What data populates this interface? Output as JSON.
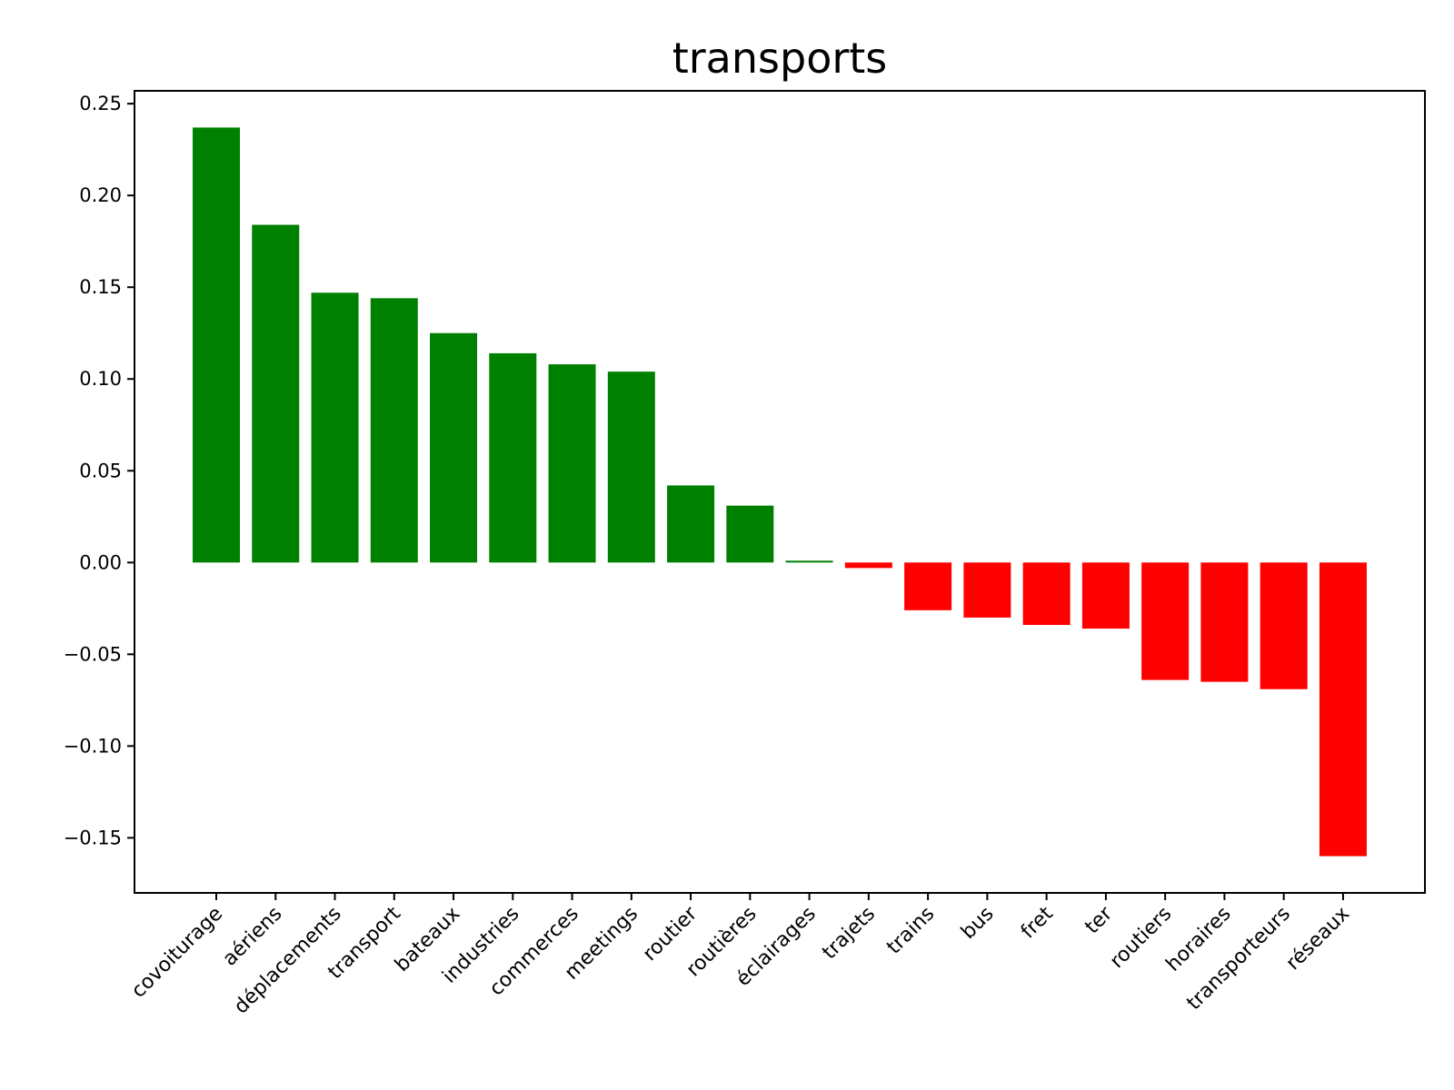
{
  "chart_data": {
    "type": "bar",
    "title": "transports",
    "xlabel": "",
    "ylabel": "",
    "categories": [
      "covoiturage",
      "aériens",
      "déplacements",
      "transport",
      "bateaux",
      "industries",
      "commerces",
      "meetings",
      "routier",
      "routières",
      "éclairages",
      "trajets",
      "trains",
      "bus",
      "fret",
      "ter",
      "routiers",
      "horaires",
      "transporteurs",
      "réseaux"
    ],
    "values": [
      0.237,
      0.184,
      0.147,
      0.144,
      0.125,
      0.114,
      0.108,
      0.104,
      0.042,
      0.031,
      0.001,
      -0.003,
      -0.026,
      -0.03,
      -0.034,
      -0.036,
      -0.064,
      -0.065,
      -0.069,
      -0.16
    ],
    "ylim": [
      -0.18,
      0.257
    ],
    "yticks": [
      -0.15,
      -0.1,
      -0.05,
      0.0,
      0.05,
      0.1,
      0.15,
      0.2,
      0.25
    ],
    "ytick_labels": [
      "−0.15",
      "−0.10",
      "−0.05",
      "0.00",
      "0.05",
      "0.10",
      "0.15",
      "0.20",
      "0.25"
    ],
    "colors": {
      "positive": "#008000",
      "negative": "#ff0000"
    },
    "grid": false,
    "legend": "none"
  }
}
